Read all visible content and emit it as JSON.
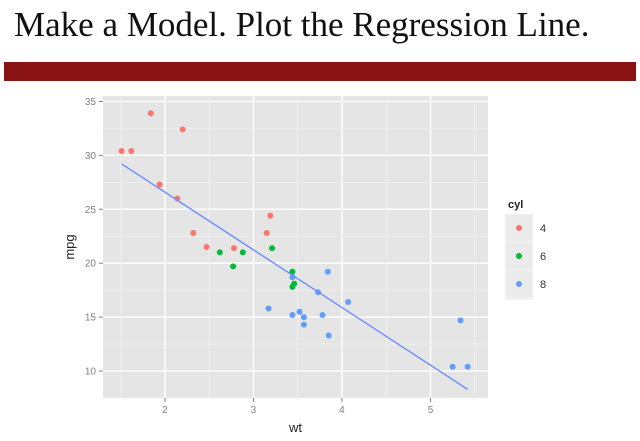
{
  "slide": {
    "title": "Make a Model. Plot the Regression Line."
  },
  "colors": {
    "title_bar": "#8a1414",
    "panel": "#e5e5e5",
    "grid": "#ffffff",
    "regression_line": "#6b8cff"
  },
  "chart_data": {
    "type": "scatter",
    "xlabel": "wt",
    "ylabel": "mpg",
    "xlim": [
      1.3,
      5.65
    ],
    "ylim": [
      7.5,
      35.5
    ],
    "xticks": [
      2,
      3,
      4,
      5
    ],
    "yticks": [
      10,
      15,
      20,
      25,
      30,
      35
    ],
    "grid": true,
    "legend": {
      "title": "cyl",
      "position": "right",
      "entries": [
        "4",
        "6",
        "8"
      ]
    },
    "series": [
      {
        "name": "4",
        "color": "#f8766d",
        "points": [
          [
            1.51,
            30.4
          ],
          [
            1.62,
            30.4
          ],
          [
            1.84,
            33.9
          ],
          [
            1.94,
            27.3
          ],
          [
            2.14,
            26.0
          ],
          [
            2.2,
            32.4
          ],
          [
            2.32,
            22.8
          ],
          [
            2.47,
            21.5
          ],
          [
            2.78,
            21.4
          ],
          [
            3.15,
            22.8
          ],
          [
            3.19,
            24.4
          ]
        ]
      },
      {
        "name": "6",
        "color": "#00ba38",
        "points": [
          [
            2.62,
            21.0
          ],
          [
            2.77,
            19.7
          ],
          [
            2.88,
            21.0
          ],
          [
            3.21,
            21.4
          ],
          [
            3.44,
            19.2
          ],
          [
            3.44,
            17.8
          ],
          [
            3.46,
            18.1
          ]
        ]
      },
      {
        "name": "8",
        "color": "#619cff",
        "points": [
          [
            3.17,
            15.8
          ],
          [
            3.44,
            18.7
          ],
          [
            3.44,
            15.2
          ],
          [
            3.52,
            15.5
          ],
          [
            3.57,
            14.3
          ],
          [
            3.57,
            15.0
          ],
          [
            3.73,
            17.3
          ],
          [
            3.78,
            15.2
          ],
          [
            3.84,
            19.2
          ],
          [
            3.85,
            13.3
          ],
          [
            4.07,
            16.4
          ],
          [
            5.25,
            10.4
          ],
          [
            5.34,
            14.7
          ],
          [
            5.42,
            10.4
          ]
        ]
      }
    ],
    "regression_line": {
      "x": [
        1.51,
        5.42
      ],
      "y": [
        29.2,
        8.3
      ]
    }
  }
}
